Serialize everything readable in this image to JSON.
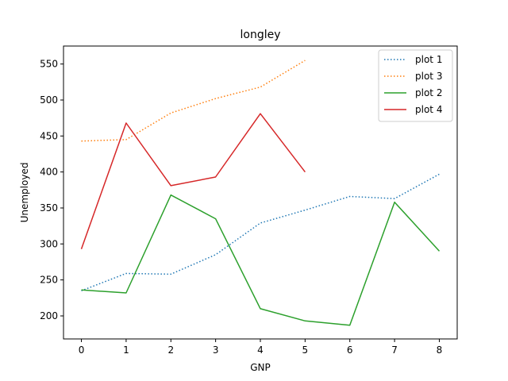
{
  "chart_data": {
    "type": "line",
    "title": "longley",
    "xlabel": "GNP",
    "ylabel": "Unemployed",
    "xlim": [
      -0.4,
      8.4
    ],
    "ylim": [
      168,
      575
    ],
    "xticks": [
      0,
      1,
      2,
      3,
      4,
      5,
      6,
      7,
      8
    ],
    "yticks": [
      200,
      250,
      300,
      350,
      400,
      450,
      500,
      550
    ],
    "grid": false,
    "legend_position": "top-right",
    "legend_order": [
      "plot 1",
      "plot 3",
      "plot 2",
      "plot 4"
    ],
    "series": [
      {
        "name": "plot 1",
        "style": "dotted",
        "color": "#1f77b4",
        "x": [
          0,
          1,
          2,
          3,
          4,
          5,
          6,
          7,
          8
        ],
        "values": [
          235,
          259,
          258,
          285,
          329,
          347,
          366,
          363,
          397
        ]
      },
      {
        "name": "plot 3",
        "style": "dotted",
        "color": "#ff7f0e",
        "x": [
          0,
          1,
          2,
          3,
          4,
          5
        ],
        "values": [
          443,
          445,
          482,
          502,
          518,
          555
        ]
      },
      {
        "name": "plot 2",
        "style": "solid",
        "color": "#2ca02c",
        "x": [
          0,
          1,
          2,
          3,
          4,
          5,
          6,
          7,
          8
        ],
        "values": [
          236,
          232,
          368,
          335,
          210,
          193,
          187,
          358,
          290
        ]
      },
      {
        "name": "plot 4",
        "style": "solid",
        "color": "#d62728",
        "x": [
          0,
          1,
          2,
          3,
          4,
          5
        ],
        "values": [
          293,
          468,
          381,
          393,
          481,
          400
        ]
      }
    ]
  }
}
